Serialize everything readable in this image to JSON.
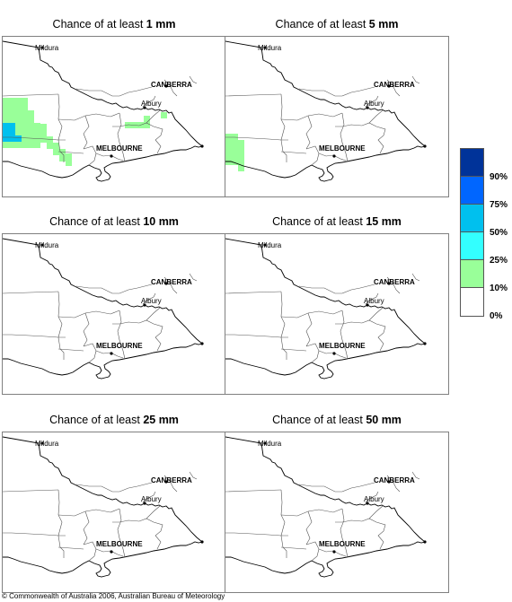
{
  "panels": [
    {
      "prefix": "Chance of at least ",
      "amount": "1 mm",
      "shading": "p1"
    },
    {
      "prefix": "Chance of at least ",
      "amount": "5 mm",
      "shading": "p2"
    },
    {
      "prefix": "Chance of at least ",
      "amount": "10 mm",
      "shading": "none"
    },
    {
      "prefix": "Chance of at least ",
      "amount": "15 mm",
      "shading": "none"
    },
    {
      "prefix": "Chance of at least ",
      "amount": "25 mm",
      "shading": "none"
    },
    {
      "prefix": "Chance of at least ",
      "amount": "50 mm",
      "shading": "none"
    }
  ],
  "map_labels": {
    "mildura": "Mildura",
    "canberra": "CANBERRA",
    "albury": "Albury",
    "melbourne": "MELBOURNE"
  },
  "legend": {
    "bins": [
      {
        "label": "",
        "color": "#003399"
      },
      {
        "label": "90%",
        "color": "#0066ff"
      },
      {
        "label": "75%",
        "color": "#00c0ee"
      },
      {
        "label": "50%",
        "color": "#33ffff"
      },
      {
        "label": "25%",
        "color": "#99ff99"
      },
      {
        "label": "10%",
        "color": "#ffffff"
      },
      {
        "label": "0%",
        "color": ""
      }
    ]
  },
  "copyright": "© Commonwealth of Australia 2006, Australian Bureau of Meteorology"
}
